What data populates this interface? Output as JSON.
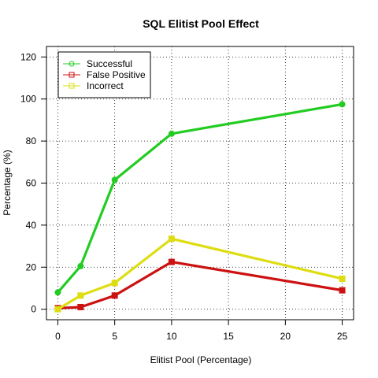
{
  "chart_data": {
    "type": "line",
    "title": "SQL Elitist Pool Effect",
    "xlabel": "Elitist Pool (Percentage)",
    "ylabel": "Percentage (%)",
    "xlim": [
      -1,
      26
    ],
    "ylim": [
      -5,
      125
    ],
    "x_ticks": [
      0,
      5,
      10,
      15,
      20,
      25
    ],
    "y_ticks": [
      0,
      20,
      40,
      60,
      80,
      100,
      120
    ],
    "grid": true,
    "legend_position": "top-left",
    "x": [
      0,
      2,
      5,
      10,
      25
    ],
    "series": [
      {
        "name": "Successful",
        "color": "#22cc22",
        "marker": "circle",
        "values": [
          8,
          20.5,
          61.5,
          83.5,
          97.5
        ]
      },
      {
        "name": "False Positive",
        "color": "#cc1111",
        "marker": "square",
        "values": [
          0.5,
          1,
          6.5,
          22.5,
          9
        ]
      },
      {
        "name": "Incorrect",
        "color": "#dddd11",
        "marker": "square",
        "values": [
          0,
          6.5,
          12.5,
          33.5,
          14.5
        ]
      }
    ]
  }
}
